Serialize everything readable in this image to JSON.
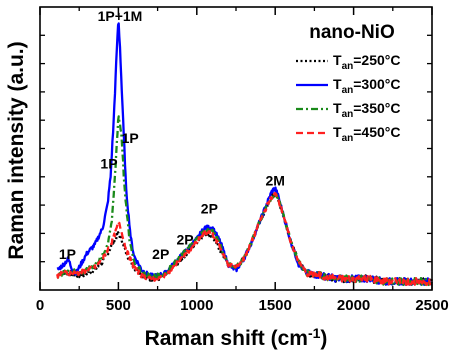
{
  "chart_data": {
    "type": "line",
    "xlabel": "Raman shift (cm",
    "xlabel_sup": "-1",
    "xlabel_close": ")",
    "ylabel": "Raman intensity (a.u.)",
    "xlim": [
      0,
      2500
    ],
    "ylim": [
      0,
      100
    ],
    "xticks": [
      0,
      500,
      1000,
      1500,
      2000,
      2500
    ],
    "xtick_labels": [
      "0",
      "500",
      "1000",
      "1500",
      "2000",
      "2500"
    ],
    "y_tick_labels_shown": false,
    "legend_title": "nano-NiO",
    "legend_position": "top-right",
    "annotations": [
      {
        "text": "1P+1M",
        "x": 510,
        "y": 95
      },
      {
        "text": "1P",
        "x": 440,
        "y": 43
      },
      {
        "text": "1P",
        "x": 575,
        "y": 52
      },
      {
        "text": "1P",
        "x": 175,
        "y": 11
      },
      {
        "text": "2P",
        "x": 770,
        "y": 11
      },
      {
        "text": "2P",
        "x": 925,
        "y": 16
      },
      {
        "text": "2P",
        "x": 1080,
        "y": 27
      },
      {
        "text": "2M",
        "x": 1500,
        "y": 37
      }
    ],
    "series": [
      {
        "name_main": "T",
        "name_sub": "an",
        "name_rest": "=250°C",
        "color": "#000000",
        "dash": "2,2.5",
        "width": 2.3,
        "x": [
          110,
          150,
          200,
          250,
          300,
          350,
          400,
          450,
          480,
          500,
          520,
          550,
          600,
          650,
          700,
          750,
          800,
          850,
          900,
          950,
          1000,
          1050,
          1100,
          1150,
          1200,
          1250,
          1300,
          1350,
          1400,
          1450,
          1480,
          1500,
          1520,
          1550,
          1600,
          1650,
          1700,
          1800,
          1900,
          2000,
          2100,
          2200,
          2300,
          2400,
          2500
        ],
        "values": [
          5,
          6,
          6,
          5,
          6,
          7,
          10,
          15,
          18,
          20,
          18,
          13,
          8,
          5,
          4,
          4,
          5,
          8,
          11,
          14,
          17,
          20,
          19,
          14,
          9,
          8,
          11,
          17,
          24,
          30,
          33,
          34,
          32,
          27,
          17,
          10,
          6,
          5,
          4,
          4,
          4,
          3,
          3,
          3,
          3
        ]
      },
      {
        "name_main": "T",
        "name_sub": "an",
        "name_rest": "=300°C",
        "color": "#0000ff",
        "dash": "",
        "width": 2.3,
        "x": [
          110,
          150,
          180,
          200,
          230,
          260,
          300,
          350,
          400,
          430,
          450,
          470,
          490,
          500,
          510,
          530,
          550,
          580,
          600,
          650,
          700,
          750,
          800,
          850,
          900,
          950,
          1000,
          1050,
          1100,
          1150,
          1200,
          1250,
          1300,
          1350,
          1400,
          1450,
          1480,
          1500,
          1520,
          1550,
          1600,
          1650,
          1700,
          1800,
          1900,
          2000,
          2100,
          2200,
          2300,
          2400,
          2500
        ],
        "values": [
          7,
          9,
          11,
          8,
          6,
          9,
          13,
          16,
          22,
          30,
          40,
          60,
          85,
          96,
          86,
          60,
          35,
          18,
          12,
          7,
          5,
          5,
          6,
          9,
          12,
          15,
          18,
          22,
          22,
          17,
          9,
          7,
          11,
          17,
          24,
          31,
          35,
          36,
          33,
          27,
          17,
          9,
          6,
          5,
          4,
          4,
          4,
          3,
          3,
          3,
          3
        ]
      },
      {
        "name_main": "T",
        "name_sub": "an",
        "name_rest": "=350°C",
        "color": "#1a8a1a",
        "dash": "7,3,2,3",
        "width": 2.3,
        "x": [
          110,
          150,
          200,
          250,
          300,
          350,
          400,
          430,
          460,
          480,
          500,
          520,
          540,
          570,
          600,
          650,
          700,
          750,
          800,
          850,
          900,
          950,
          1000,
          1050,
          1100,
          1150,
          1200,
          1250,
          1300,
          1350,
          1400,
          1450,
          1480,
          1500,
          1520,
          1550,
          1600,
          1650,
          1700,
          1800,
          1900,
          2000,
          2100,
          2200,
          2300,
          2400,
          2500
        ],
        "values": [
          5,
          6,
          7,
          6,
          7,
          9,
          12,
          16,
          25,
          42,
          62,
          55,
          35,
          18,
          10,
          6,
          5,
          5,
          6,
          9,
          12,
          15,
          18,
          21,
          21,
          16,
          9,
          8,
          11,
          17,
          24,
          30,
          33,
          34,
          32,
          27,
          17,
          10,
          6,
          5,
          4,
          4,
          4,
          3,
          3,
          3,
          3
        ]
      },
      {
        "name_main": "T",
        "name_sub": "an",
        "name_rest": "=450°C",
        "color": "#ff2020",
        "dash": "7,4",
        "width": 2.3,
        "x": [
          110,
          150,
          200,
          250,
          300,
          350,
          400,
          450,
          480,
          500,
          520,
          550,
          600,
          650,
          700,
          750,
          800,
          850,
          900,
          950,
          1000,
          1050,
          1100,
          1150,
          1200,
          1250,
          1300,
          1350,
          1400,
          1450,
          1480,
          1500,
          1520,
          1550,
          1600,
          1650,
          1700,
          1800,
          1900,
          2000,
          2100,
          2200,
          2300,
          2400,
          2500
        ],
        "values": [
          5,
          6,
          6,
          6,
          7,
          8,
          11,
          16,
          20,
          24,
          21,
          14,
          8,
          5,
          4,
          4,
          5,
          8,
          11,
          14,
          17,
          20,
          20,
          15,
          9,
          8,
          11,
          17,
          24,
          30,
          33,
          34,
          32,
          27,
          17,
          10,
          6,
          5,
          4,
          4,
          4,
          3,
          3,
          3,
          3
        ]
      }
    ]
  }
}
